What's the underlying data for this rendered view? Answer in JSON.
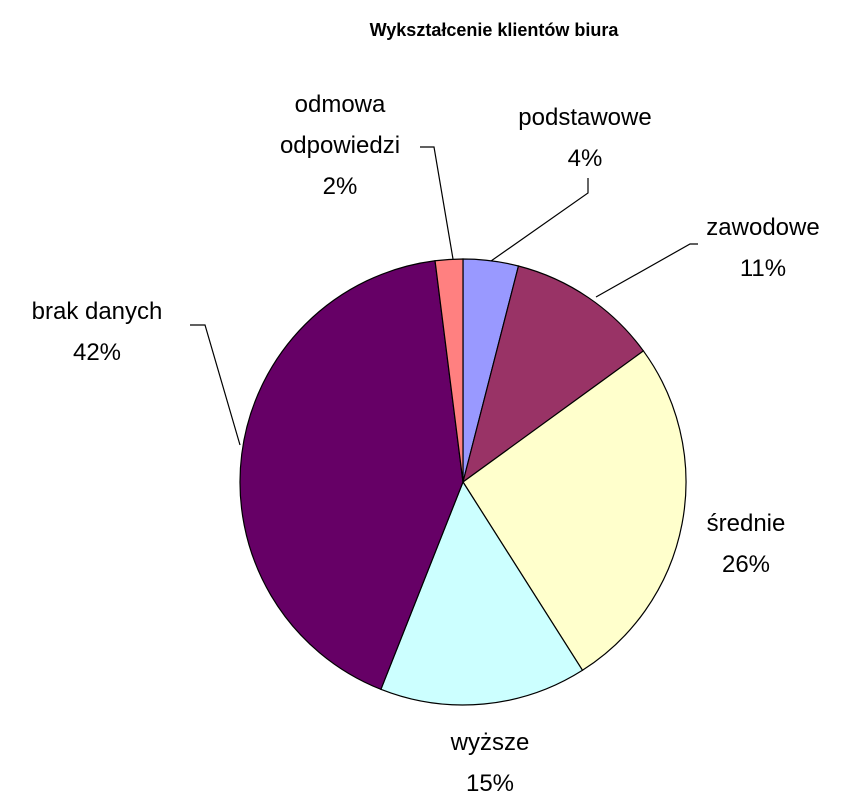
{
  "chart_data": {
    "type": "pie",
    "title": "Wykształcenie klientów biura",
    "categories": [
      "podstawowe",
      "zawodowe",
      "średnie",
      "wyższe",
      "brak danych",
      "odmowa odpowiedzi"
    ],
    "values": [
      4,
      11,
      26,
      15,
      42,
      2
    ],
    "value_labels": [
      "4%",
      "11%",
      "26%",
      "15%",
      "42%",
      "2%"
    ],
    "colors": [
      "#9999ff",
      "#993366",
      "#ffffcc",
      "#ccffff",
      "#660066",
      "#ff8080"
    ]
  }
}
